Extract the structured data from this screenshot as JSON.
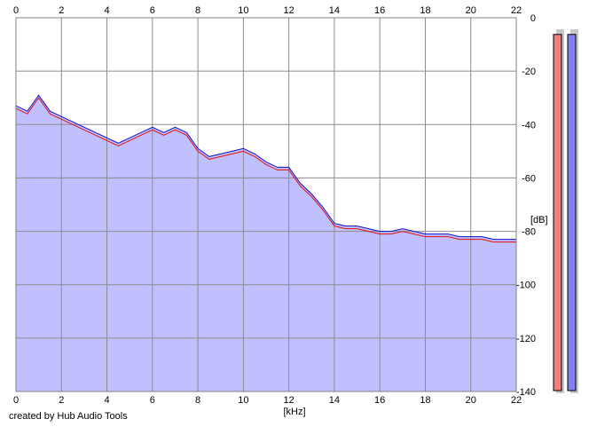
{
  "chart_data": {
    "type": "area",
    "xlabel": "[kHz]",
    "ylabel": "[dB]",
    "xlim": [
      0,
      22
    ],
    "ylim": [
      -140,
      0
    ],
    "x_ticks": [
      0,
      2,
      4,
      6,
      8,
      10,
      12,
      14,
      16,
      18,
      20,
      22
    ],
    "y_ticks": [
      0,
      -20,
      -40,
      -60,
      -80,
      -100,
      -120,
      -140
    ],
    "grid": true,
    "series": [
      {
        "color": "#e01010",
        "x": [
          0,
          0.5,
          1,
          1.5,
          2,
          2.5,
          3,
          3.5,
          4,
          4.5,
          5,
          5.5,
          6,
          6.5,
          7,
          7.5,
          8,
          8.5,
          9,
          9.5,
          10,
          10.5,
          11,
          11.5,
          12,
          12.5,
          13,
          13.5,
          14,
          14.5,
          15,
          15.5,
          16,
          16.5,
          17,
          17.5,
          18,
          18.5,
          19,
          19.5,
          20,
          20.5,
          21,
          21.5,
          22
        ],
        "values": [
          -34,
          -36,
          -30,
          -36,
          -38,
          -40,
          -42,
          -44,
          -46,
          -48,
          -46,
          -44,
          -42,
          -44,
          -42,
          -44,
          -50,
          -53,
          -52,
          -51,
          -50,
          -52,
          -55,
          -57,
          -57,
          -63,
          -67,
          -72,
          -78,
          -79,
          -79,
          -80,
          -81,
          -81,
          -80,
          -81,
          -82,
          -82,
          -82,
          -83,
          -83,
          -83,
          -84,
          -84,
          -84
        ]
      },
      {
        "color": "#1010d0",
        "x": [
          0,
          0.5,
          1,
          1.5,
          2,
          2.5,
          3,
          3.5,
          4,
          4.5,
          5,
          5.5,
          6,
          6.5,
          7,
          7.5,
          8,
          8.5,
          9,
          9.5,
          10,
          10.5,
          11,
          11.5,
          12,
          12.5,
          13,
          13.5,
          14,
          14.5,
          15,
          15.5,
          16,
          16.5,
          17,
          17.5,
          18,
          18.5,
          19,
          19.5,
          20,
          20.5,
          21,
          21.5,
          22
        ],
        "values": [
          -33,
          -35,
          -29,
          -35,
          -37,
          -39,
          -41,
          -43,
          -45,
          -47,
          -45,
          -43,
          -41,
          -43,
          -41,
          -43,
          -49,
          -52,
          -51,
          -50,
          -49,
          -51,
          -54,
          -56,
          -56,
          -62,
          -66,
          -71,
          -77,
          -78,
          -78,
          -79,
          -80,
          -80,
          -79,
          -80,
          -81,
          -81,
          -81,
          -82,
          -82,
          -82,
          -83,
          -83,
          -83
        ]
      }
    ],
    "fill_color": "#c0c0ff",
    "meters": [
      {
        "color": "#f08080",
        "value": -3
      },
      {
        "color": "#8080f0",
        "value": -3
      }
    ]
  },
  "credit": "created by Hub Audio Tools"
}
